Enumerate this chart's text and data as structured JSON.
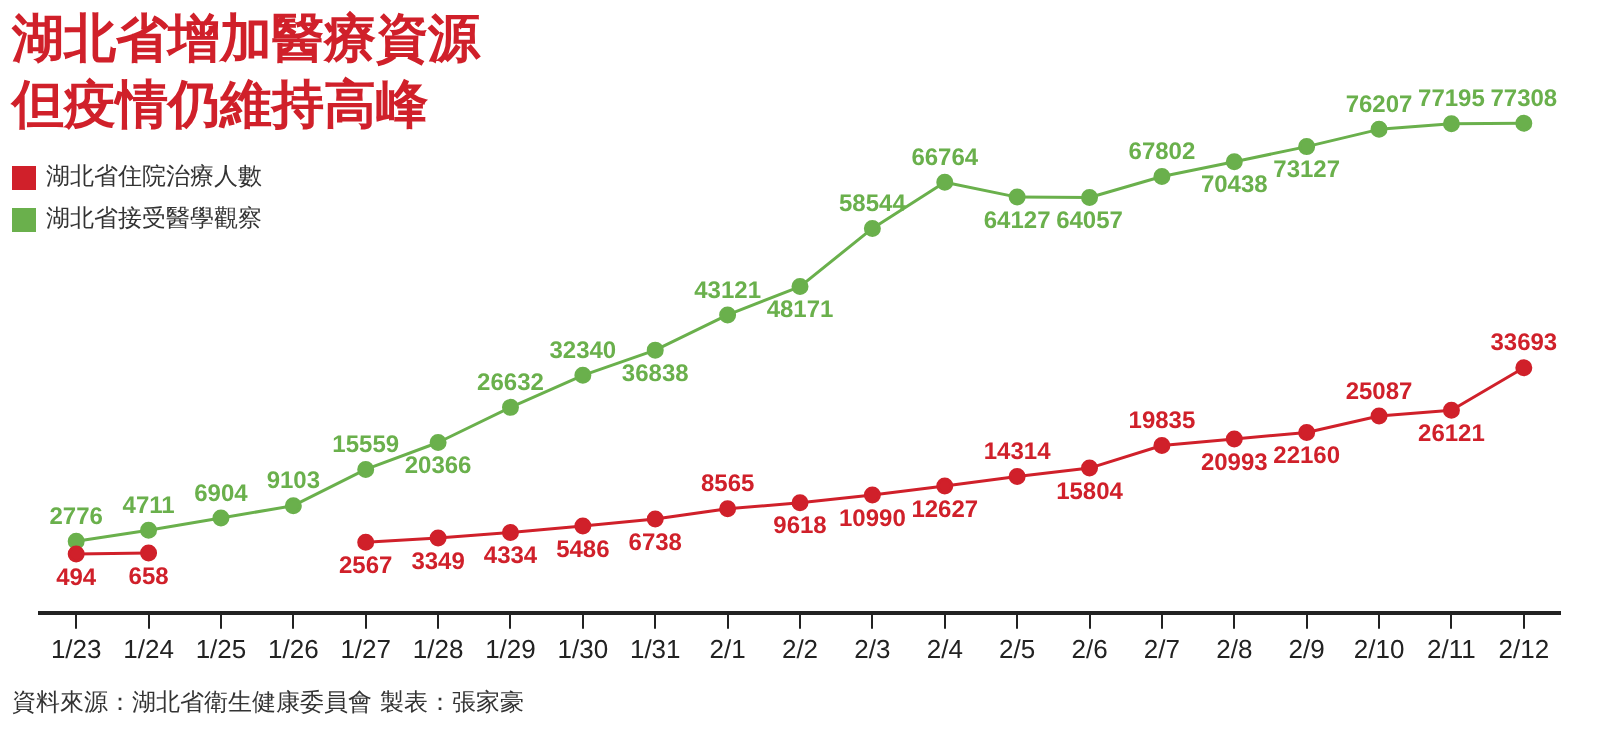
{
  "chart_data": {
    "type": "line",
    "title": "湖北省增加醫療資源但疫情仍維持高峰",
    "categories": [
      "1/23",
      "1/24",
      "1/25",
      "1/26",
      "1/27",
      "1/28",
      "1/29",
      "1/30",
      "1/31",
      "2/1",
      "2/2",
      "2/3",
      "2/4",
      "2/5",
      "2/6",
      "2/7",
      "2/8",
      "2/9",
      "2/10",
      "2/11",
      "2/12"
    ],
    "series": [
      {
        "name": "湖北省住院治療人數",
        "color": "#d0202a",
        "values": [
          494,
          658,
          null,
          null,
          2567,
          3349,
          4334,
          5486,
          6738,
          8565,
          9618,
          10990,
          12627,
          14314,
          15804,
          19835,
          20993,
          22160,
          25087,
          26121,
          33693
        ]
      },
      {
        "name": "湖北省接受醫學觀察",
        "color": "#6ab04c",
        "values": [
          2776,
          4711,
          6904,
          9103,
          15559,
          20366,
          26632,
          32340,
          36838,
          43121,
          48171,
          58544,
          66764,
          64127,
          64057,
          67802,
          70438,
          73127,
          76207,
          77195,
          77308
        ]
      }
    ],
    "data_labels": true,
    "marker": "circle",
    "legend": "top left",
    "grid": false,
    "tick_labels": "x",
    "annotations": [
      "資料來源：湖北省衛生健康委員會  製表：張家豪"
    ]
  }
}
